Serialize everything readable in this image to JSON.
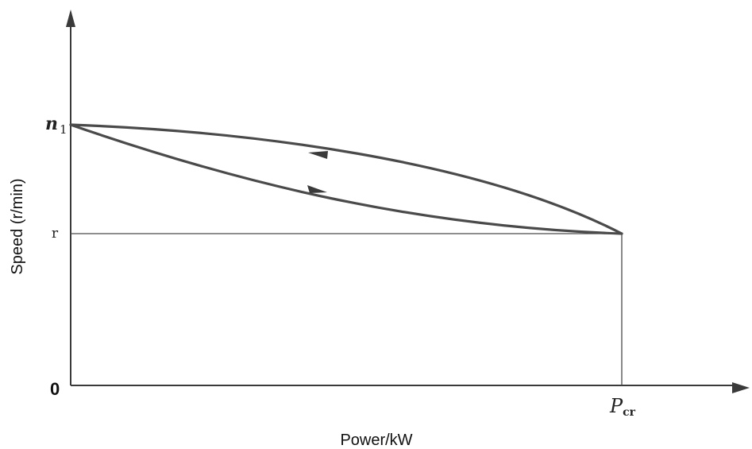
{
  "diagram": {
    "x_axis_label": "Power/kW",
    "y_axis_label": "Speed (r/min)",
    "origin_label": "0",
    "y_tick_top": {
      "main": "n",
      "sub": "1"
    },
    "y_tick_mid": "r",
    "x_tick": {
      "main": "P",
      "sub": "cr"
    },
    "colors": {
      "ink": "#3a3a3a",
      "curve": "#4a4a4a",
      "background": "#ffffff"
    }
  }
}
